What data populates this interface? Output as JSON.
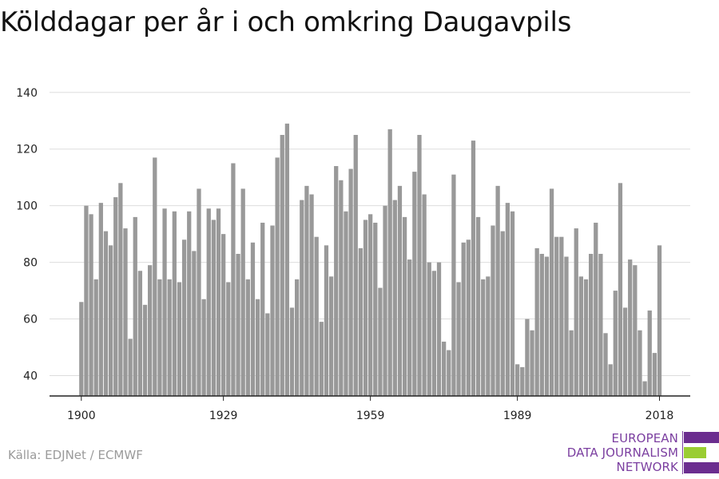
{
  "title": "Kölddagar per år i och omkring Daugavpils",
  "source": "Källa: EDJNet / ECMWF",
  "logo": {
    "line1": "EUROPEAN",
    "line2": "DATA JOURNALISM",
    "line3": "NETWORK",
    "colors": [
      "#6b2d8f",
      "#9acd32",
      "#6b2d8f"
    ]
  },
  "colors": {
    "bar": "#999999",
    "grid": "#dddddd",
    "axis": "#222222",
    "text": "#222222"
  },
  "chart_data": {
    "type": "bar",
    "title": "Kölddagar per år i och omkring Daugavpils",
    "xlabel": "",
    "ylabel": "",
    "ylim": [
      32,
      140
    ],
    "yticks": [
      40,
      60,
      80,
      100,
      120,
      140
    ],
    "xticks": [
      1900,
      1929,
      1959,
      1989,
      2018
    ],
    "grid": true,
    "x": [
      1900,
      1901,
      1902,
      1903,
      1904,
      1905,
      1906,
      1907,
      1908,
      1909,
      1910,
      1911,
      1912,
      1913,
      1914,
      1915,
      1916,
      1917,
      1918,
      1919,
      1920,
      1921,
      1922,
      1923,
      1924,
      1925,
      1926,
      1927,
      1928,
      1929,
      1930,
      1931,
      1932,
      1933,
      1934,
      1935,
      1936,
      1937,
      1938,
      1939,
      1940,
      1941,
      1942,
      1943,
      1944,
      1945,
      1946,
      1947,
      1948,
      1949,
      1950,
      1951,
      1952,
      1953,
      1954,
      1955,
      1956,
      1957,
      1958,
      1959,
      1960,
      1961,
      1962,
      1963,
      1964,
      1965,
      1966,
      1967,
      1968,
      1969,
      1970,
      1971,
      1972,
      1973,
      1974,
      1975,
      1976,
      1977,
      1978,
      1979,
      1980,
      1981,
      1982,
      1983,
      1984,
      1985,
      1986,
      1987,
      1988,
      1989,
      1990,
      1991,
      1992,
      1993,
      1994,
      1995,
      1996,
      1997,
      1998,
      1999,
      2000,
      2001,
      2002,
      2003,
      2004,
      2005,
      2006,
      2007,
      2008,
      2009,
      2010,
      2011,
      2012,
      2013,
      2014,
      2015,
      2016,
      2017,
      2018
    ],
    "values": [
      66,
      100,
      97,
      74,
      101,
      91,
      86,
      103,
      108,
      92,
      53,
      96,
      77,
      65,
      79,
      117,
      74,
      99,
      74,
      98,
      73,
      88,
      98,
      84,
      106,
      67,
      99,
      95,
      99,
      90,
      73,
      115,
      83,
      106,
      74,
      87,
      67,
      94,
      62,
      93,
      117,
      125,
      129,
      64,
      74,
      102,
      107,
      104,
      89,
      59,
      86,
      75,
      114,
      109,
      98,
      113,
      125,
      85,
      95,
      97,
      94,
      71,
      100,
      127,
      102,
      107,
      96,
      81,
      112,
      125,
      104,
      80,
      77,
      80,
      52,
      49,
      111,
      73,
      87,
      88,
      123,
      96,
      74,
      75,
      93,
      107,
      91,
      101,
      98,
      44,
      43,
      60,
      56,
      85,
      83,
      82,
      106,
      89,
      89,
      82,
      56,
      92,
      75,
      74,
      83,
      94,
      83,
      55,
      44,
      70,
      108,
      64,
      81,
      79,
      56,
      38,
      63,
      48,
      86
    ]
  }
}
